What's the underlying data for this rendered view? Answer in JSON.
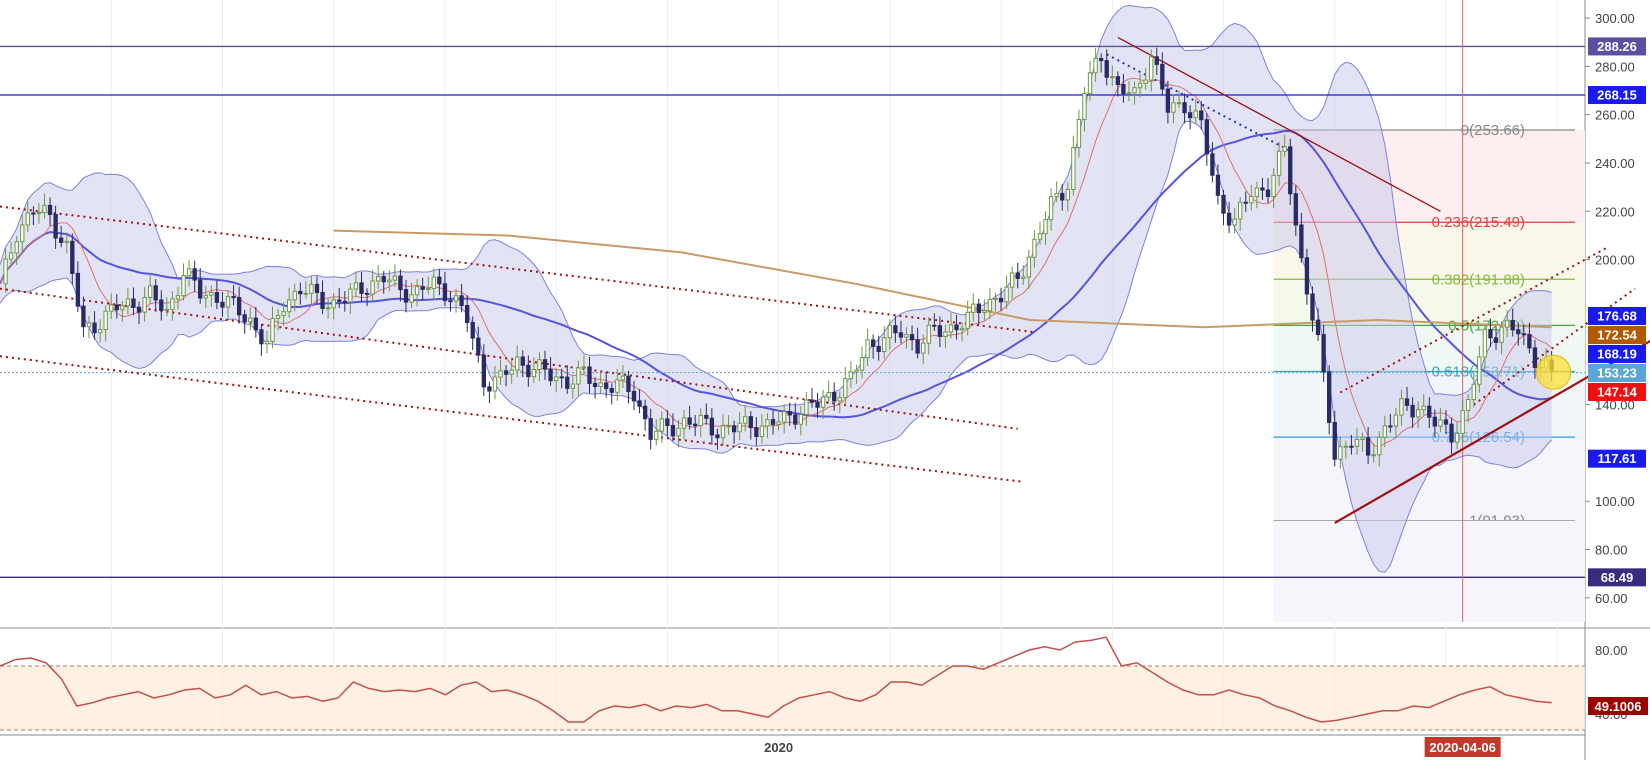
{
  "chart_data": [
    {
      "type": "candlestick",
      "title": "",
      "y_axis": {
        "position": "right",
        "range": [
          50,
          305
        ],
        "ticks": [
          300,
          280,
          260,
          240,
          220,
          200,
          140,
          100,
          80,
          60
        ],
        "tick_labels": [
          "300.00",
          "280.00",
          "260.00",
          "240.00",
          "220.00",
          "200.00",
          "140.00",
          "100.00",
          "80.00",
          "60.00"
        ]
      },
      "x_axis": {
        "labels": [
          {
            "text": "2020",
            "index": 140
          },
          {
            "text": "2020-04-06",
            "index": 263,
            "highlight": true
          }
        ]
      },
      "grid": true,
      "ohlc_close_path": [
        [
          0,
          188
        ],
        [
          3,
          212
        ],
        [
          6,
          220
        ],
        [
          9,
          218
        ],
        [
          12,
          205
        ],
        [
          15,
          170
        ],
        [
          18,
          175
        ],
        [
          21,
          180
        ],
        [
          24,
          182
        ],
        [
          27,
          185
        ],
        [
          30,
          178
        ],
        [
          33,
          195
        ],
        [
          36,
          186
        ],
        [
          39,
          185
        ],
        [
          42,
          180
        ],
        [
          45,
          175
        ],
        [
          48,
          165
        ],
        [
          51,
          182
        ],
        [
          54,
          188
        ],
        [
          57,
          184
        ],
        [
          60,
          182
        ],
        [
          63,
          185
        ],
        [
          66,
          190
        ],
        [
          69,
          192
        ],
        [
          72,
          188
        ],
        [
          75,
          186
        ],
        [
          78,
          190
        ],
        [
          81,
          186
        ],
        [
          84,
          175
        ],
        [
          87,
          150
        ],
        [
          90,
          150
        ],
        [
          93,
          158
        ],
        [
          96,
          155
        ],
        [
          99,
          152
        ],
        [
          102,
          150
        ],
        [
          105,
          152
        ],
        [
          108,
          148
        ],
        [
          111,
          148
        ],
        [
          114,
          145
        ],
        [
          117,
          128
        ],
        [
          120,
          130
        ],
        [
          123,
          133
        ],
        [
          126,
          132
        ],
        [
          129,
          130
        ],
        [
          132,
          130
        ],
        [
          135,
          132
        ],
        [
          138,
          131
        ],
        [
          141,
          134
        ],
        [
          144,
          138
        ],
        [
          147,
          140
        ],
        [
          150,
          145
        ],
        [
          153,
          150
        ],
        [
          156,
          165
        ],
        [
          159,
          167
        ],
        [
          162,
          170
        ],
        [
          165,
          165
        ],
        [
          168,
          170
        ],
        [
          171,
          172
        ],
        [
          174,
          175
        ],
        [
          177,
          182
        ],
        [
          180,
          185
        ],
        [
          183,
          192
        ],
        [
          186,
          207
        ],
        [
          189,
          222
        ],
        [
          192,
          232
        ],
        [
          195,
          270
        ],
        [
          198,
          285
        ],
        [
          201,
          270
        ],
        [
          204,
          268
        ],
        [
          207,
          285
        ],
        [
          210,
          262
        ],
        [
          213,
          265
        ],
        [
          216,
          255
        ],
        [
          219,
          225
        ],
        [
          222,
          215
        ],
        [
          225,
          228
        ],
        [
          228,
          230
        ],
        [
          231,
          245
        ],
        [
          234,
          200
        ],
        [
          237,
          165
        ],
        [
          240,
          120
        ],
        [
          243,
          125
        ],
        [
          246,
          120
        ],
        [
          249,
          130
        ],
        [
          252,
          138
        ],
        [
          255,
          140
        ],
        [
          258,
          132
        ],
        [
          261,
          128
        ],
        [
          264,
          140
        ],
        [
          267,
          168
        ],
        [
          270,
          172
        ],
        [
          273,
          170
        ],
        [
          276,
          160
        ],
        [
          279,
          152
        ]
      ],
      "overlays": {
        "bollinger_bands": true,
        "moving_averages": [
          {
            "color": "#5555dd",
            "kind": "mid-band"
          },
          {
            "color": "#e07070",
            "kind": "fast"
          },
          {
            "color": "#c89a6a",
            "kind": "slow",
            "approx_values": [
              212,
              210,
              203,
              190,
              175,
              172,
              175,
              172
            ]
          }
        ]
      },
      "horizontal_levels": [
        {
          "value": 288.26,
          "label": "288.26",
          "color": "#5a4fa0"
        },
        {
          "value": 268.15,
          "label": "268.15",
          "color": "#1a1aee"
        },
        {
          "value": 176.68,
          "label": "176.68",
          "color": "#1a1aee"
        },
        {
          "value": 172.54,
          "label": "172.54",
          "color": "#b35900"
        },
        {
          "value": 168.19,
          "label": "168.19",
          "color": "#1a1aee"
        },
        {
          "value": 153.23,
          "label": "153.23",
          "color": "#5aa6d6"
        },
        {
          "value": 147.14,
          "label": "147.14",
          "color": "#ee1111"
        },
        {
          "value": 117.61,
          "label": "117.61",
          "color": "#1a1aee"
        },
        {
          "value": 68.49,
          "label": "68.49",
          "color": "#3a2a80"
        }
      ],
      "fibonacci": [
        {
          "ratio": "0",
          "value": 253.66,
          "label": "0(253.66)",
          "color": "#888888"
        },
        {
          "ratio": "0.236",
          "value": 215.49,
          "label": "0.236(215.49)",
          "color": "#e04040"
        },
        {
          "ratio": "0.382",
          "value": 191.88,
          "label": "0.382(191.88)",
          "color": "#88bb33"
        },
        {
          "ratio": "0.5",
          "value": 172.79,
          "label": "0.5(172.79)",
          "color": "#44aa44"
        },
        {
          "ratio": "0.618",
          "value": 153.71,
          "label": "0.618(153.71)",
          "color": "#33aabb"
        },
        {
          "ratio": "0.786",
          "value": 126.54,
          "label": "0.786(126.54)",
          "color": "#3399dd"
        },
        {
          "ratio": "1",
          "value": 91.93,
          "label": "1(91.93)",
          "color": "#888888"
        }
      ],
      "colors": {
        "up": "#6b9a3c",
        "down": "#2a2a66",
        "band_fill": "#c8c8ee",
        "trend": "#a01010"
      }
    },
    {
      "type": "line",
      "title": "",
      "y_axis": {
        "position": "right",
        "range": [
          30,
          90
        ],
        "ticks": [
          80,
          40
        ],
        "tick_labels": [
          "80.00",
          "40.00"
        ],
        "bands": [
          70,
          30
        ]
      },
      "last_value": {
        "label": "49.1006",
        "color": "#990000"
      },
      "series": [
        {
          "color": "#c0504d",
          "values": [
            70,
            74,
            75,
            72,
            62,
            45,
            47,
            50,
            52,
            54,
            50,
            52,
            55,
            56,
            50,
            52,
            58,
            52,
            54,
            50,
            51,
            48,
            50,
            60,
            56,
            54,
            55,
            54,
            56,
            52,
            58,
            60,
            54,
            55,
            52,
            48,
            42,
            35,
            35,
            42,
            45,
            44,
            46,
            42,
            45,
            44,
            46,
            42,
            42,
            40,
            38,
            45,
            50,
            52,
            54,
            50,
            48,
            52,
            60,
            60,
            58,
            64,
            70,
            70,
            68,
            72,
            76,
            80,
            82,
            80,
            85,
            86,
            88,
            70,
            72,
            66,
            60,
            55,
            52,
            52,
            55,
            52,
            50,
            45,
            42,
            38,
            35,
            36,
            38,
            40,
            42,
            42,
            45,
            44,
            48,
            52,
            55,
            57,
            52,
            50,
            48,
            47
          ]
        }
      ]
    }
  ]
}
